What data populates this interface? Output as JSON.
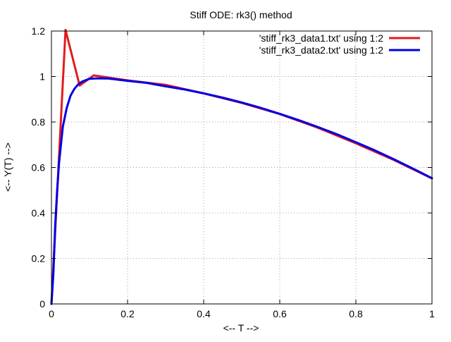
{
  "chart_data": {
    "type": "line",
    "title": "Stiff ODE: rk3() method",
    "xlabel": "<-- T -->",
    "ylabel": "<-- Y(T) -->",
    "xlim": [
      0,
      1
    ],
    "ylim": [
      0,
      1.2
    ],
    "x_ticks": [
      0,
      0.2,
      0.4,
      0.6,
      0.8,
      1
    ],
    "x_tick_labels": [
      "0",
      "0.2",
      "0.4",
      "0.6",
      "0.8",
      "1"
    ],
    "y_ticks": [
      0,
      0.2,
      0.4,
      0.6,
      0.8,
      1,
      1.2
    ],
    "y_tick_labels": [
      "0",
      "0.2",
      "0.4",
      "0.6",
      "0.8",
      "1",
      "1.2"
    ],
    "grid": true,
    "legend_position": "top-right",
    "series": [
      {
        "name": "'stiff_rk3_data1.txt' using 1:2",
        "color": "#e41a1c",
        "x": [
          0,
          0.037,
          0.074,
          0.111,
          0.2,
          0.3,
          0.4,
          0.5,
          0.6,
          0.7,
          0.8,
          0.9,
          1.0
        ],
        "y": [
          0,
          1.205,
          0.96,
          1.005,
          0.983,
          0.963,
          0.926,
          0.884,
          0.835,
          0.775,
          0.706,
          0.633,
          0.552
        ]
      },
      {
        "name": "'stiff_rk3_data2.txt' using 1:2",
        "color": "#0000e6",
        "x": [
          0,
          0.005,
          0.01,
          0.015,
          0.02,
          0.03,
          0.04,
          0.05,
          0.06,
          0.07,
          0.08,
          0.1,
          0.12,
          0.15,
          0.2,
          0.25,
          0.3,
          0.35,
          0.4,
          0.45,
          0.5,
          0.55,
          0.6,
          0.65,
          0.7,
          0.75,
          0.8,
          0.85,
          0.9,
          0.95,
          1.0
        ],
        "y": [
          0,
          0.13,
          0.35,
          0.5,
          0.62,
          0.78,
          0.86,
          0.915,
          0.945,
          0.965,
          0.977,
          0.99,
          0.992,
          0.991,
          0.981,
          0.972,
          0.957,
          0.943,
          0.926,
          0.907,
          0.886,
          0.862,
          0.836,
          0.808,
          0.778,
          0.746,
          0.711,
          0.675,
          0.636,
          0.595,
          0.553
        ]
      }
    ]
  }
}
